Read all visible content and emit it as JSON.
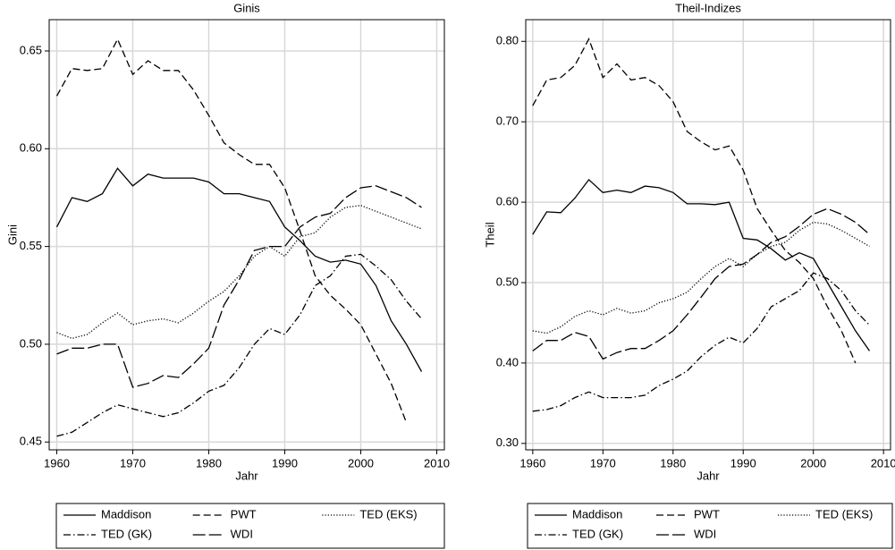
{
  "chart_data": [
    {
      "type": "line",
      "title": "Ginis",
      "x_label": "Jahr",
      "y_label": "Gini",
      "x": [
        1960,
        1962,
        1964,
        1966,
        1968,
        1970,
        1972,
        1974,
        1976,
        1978,
        1980,
        1982,
        1984,
        1986,
        1988,
        1990,
        1992,
        1994,
        1996,
        1998,
        2000,
        2002,
        2004,
        2006,
        2008
      ],
      "xlim": [
        1959,
        2011
      ],
      "xticks": [
        1960,
        1970,
        1980,
        1990,
        2000,
        2010
      ],
      "ylim": [
        0.446,
        0.666
      ],
      "yticks": [
        0.45,
        {
          "value": 0.5,
          "label": "0.50"
        },
        0.55,
        {
          "value": 0.6,
          "label": "0.60"
        },
        0.65
      ],
      "grid": true,
      "legend": "bottom",
      "series": [
        {
          "name": "Maddison",
          "color": "#000000",
          "dash": "solid",
          "values": [
            0.56,
            0.575,
            0.573,
            0.577,
            0.59,
            0.581,
            0.587,
            0.585,
            0.585,
            0.585,
            0.583,
            0.577,
            0.577,
            0.575,
            0.573,
            0.56,
            0.553,
            0.545,
            0.542,
            0.543,
            0.541,
            0.53,
            0.512,
            0.5,
            0.486
          ]
        },
        {
          "name": "PWT",
          "color": "#000000",
          "dash": "dashed",
          "values": [
            0.627,
            0.641,
            0.64,
            0.641,
            0.656,
            0.638,
            0.645,
            0.64,
            0.64,
            0.63,
            0.617,
            0.603,
            0.597,
            0.592,
            0.592,
            0.58,
            0.558,
            0.535,
            0.525,
            0.518,
            0.51,
            0.495,
            0.48,
            0.46,
            null
          ]
        },
        {
          "name": "TED (EKS)",
          "color": "#000000",
          "dash": "dotted",
          "values": [
            0.506,
            0.503,
            0.505,
            0.511,
            0.516,
            0.51,
            0.512,
            0.513,
            0.511,
            0.516,
            0.522,
            0.527,
            0.535,
            0.545,
            0.55,
            0.545,
            0.555,
            0.557,
            0.565,
            0.57,
            0.571,
            0.568,
            0.565,
            0.562,
            0.559
          ]
        },
        {
          "name": "TED (GK)",
          "color": "#000000",
          "dash": "dashdot",
          "values": [
            0.453,
            0.455,
            0.46,
            0.465,
            0.469,
            0.467,
            0.465,
            0.463,
            0.465,
            0.47,
            0.476,
            0.479,
            0.488,
            0.5,
            0.508,
            0.505,
            0.515,
            0.53,
            0.535,
            0.545,
            0.546,
            0.54,
            0.533,
            0.522,
            0.513
          ]
        },
        {
          "name": "WDI",
          "color": "#000000",
          "dash": "longdash",
          "values": [
            0.495,
            0.498,
            0.498,
            0.5,
            0.5,
            0.478,
            0.48,
            0.484,
            0.483,
            0.49,
            0.498,
            0.52,
            0.533,
            0.548,
            0.55,
            0.55,
            0.56,
            0.565,
            0.567,
            0.575,
            0.58,
            0.581,
            0.578,
            0.575,
            0.57
          ]
        }
      ]
    },
    {
      "type": "line",
      "title": "Theil-Indizes",
      "x_label": "Jahr",
      "y_label": "Theil",
      "x": [
        1960,
        1962,
        1964,
        1966,
        1968,
        1970,
        1972,
        1974,
        1976,
        1978,
        1980,
        1982,
        1984,
        1986,
        1988,
        1990,
        1992,
        1994,
        1996,
        1998,
        2000,
        2002,
        2004,
        2006,
        2008
      ],
      "xlim": [
        1959,
        2011
      ],
      "xticks": [
        1960,
        1970,
        1980,
        1990,
        2000,
        2010
      ],
      "ylim": [
        0.292,
        0.827
      ],
      "yticks": [
        {
          "value": 0.3,
          "label": "0.30"
        },
        {
          "value": 0.4,
          "label": "0.40"
        },
        {
          "value": 0.5,
          "label": "0.50"
        },
        {
          "value": 0.6,
          "label": "0.60"
        },
        {
          "value": 0.7,
          "label": "0.70"
        },
        {
          "value": 0.8,
          "label": "0.80"
        }
      ],
      "grid": true,
      "legend": "bottom",
      "series": [
        {
          "name": "Maddison",
          "color": "#000000",
          "dash": "solid",
          "values": [
            0.56,
            0.588,
            0.587,
            0.605,
            0.628,
            0.612,
            0.615,
            0.612,
            0.62,
            0.618,
            0.612,
            0.598,
            0.598,
            0.597,
            0.6,
            0.555,
            0.553,
            0.542,
            0.528,
            0.537,
            0.53,
            0.5,
            0.47,
            0.44,
            0.415
          ]
        },
        {
          "name": "PWT",
          "color": "#000000",
          "dash": "dashed",
          "values": [
            0.72,
            0.752,
            0.755,
            0.77,
            0.803,
            0.755,
            0.772,
            0.752,
            0.755,
            0.745,
            0.725,
            0.688,
            0.675,
            0.665,
            0.67,
            0.64,
            0.592,
            0.565,
            0.54,
            0.525,
            0.505,
            0.47,
            0.44,
            0.4,
            null
          ]
        },
        {
          "name": "TED (EKS)",
          "color": "#000000",
          "dash": "dotted",
          "values": [
            0.44,
            0.437,
            0.445,
            0.458,
            0.465,
            0.46,
            0.468,
            0.462,
            0.465,
            0.475,
            0.48,
            0.488,
            0.505,
            0.52,
            0.53,
            0.52,
            0.535,
            0.545,
            0.55,
            0.565,
            0.575,
            0.573,
            0.565,
            0.555,
            0.545
          ]
        },
        {
          "name": "TED (GK)",
          "color": "#000000",
          "dash": "dashdot",
          "values": [
            0.34,
            0.342,
            0.347,
            0.357,
            0.364,
            0.357,
            0.357,
            0.357,
            0.36,
            0.372,
            0.38,
            0.39,
            0.408,
            0.422,
            0.432,
            0.425,
            0.443,
            0.47,
            0.48,
            0.49,
            0.512,
            0.505,
            0.49,
            0.465,
            0.447
          ]
        },
        {
          "name": "WDI",
          "color": "#000000",
          "dash": "longdash",
          "values": [
            0.415,
            0.428,
            0.428,
            0.438,
            0.433,
            0.405,
            0.413,
            0.418,
            0.418,
            0.428,
            0.44,
            0.46,
            0.482,
            0.505,
            0.52,
            0.523,
            0.535,
            0.55,
            0.557,
            0.57,
            0.585,
            0.592,
            0.585,
            0.575,
            0.56
          ]
        }
      ]
    }
  ]
}
